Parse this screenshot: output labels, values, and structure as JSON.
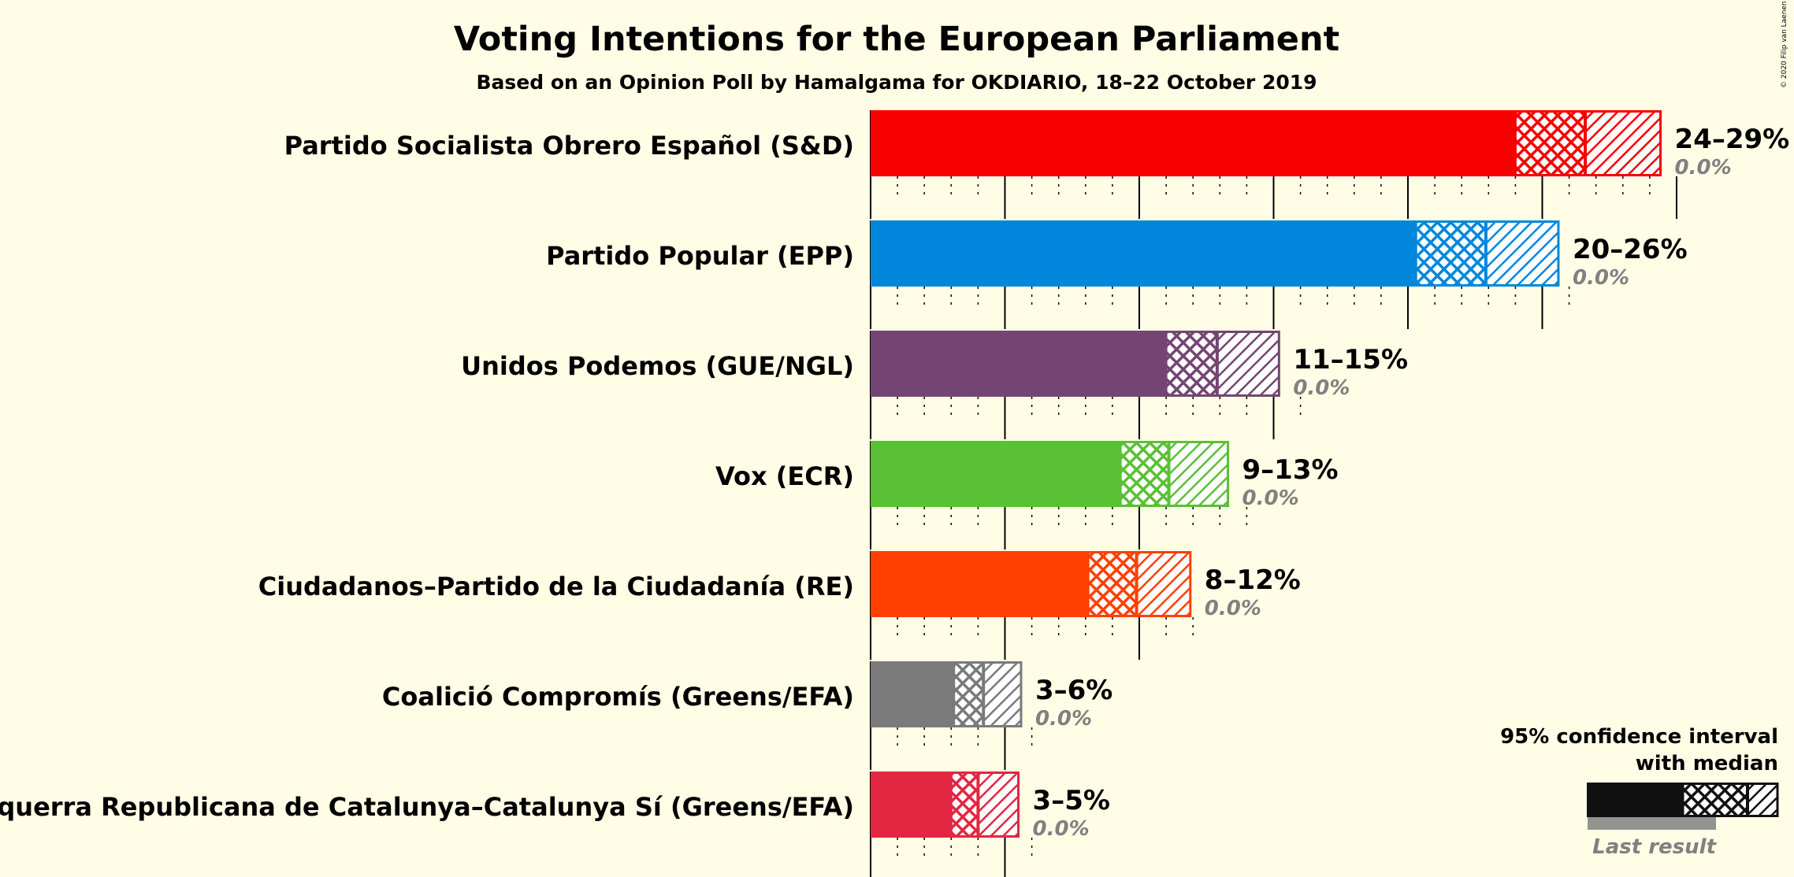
{
  "copyright": "© 2020 Filip van Laenen",
  "colors": {
    "background": "#FFFDE6",
    "last_result": "#808080"
  },
  "chart_data": {
    "type": "bar",
    "orientation": "horizontal",
    "title": "Voting Intentions for the European Parliament",
    "subtitle": "Based on an Opinion Poll by Hamalgama for OKDIARIO, 18–22 October 2019",
    "xlim": [
      0,
      30
    ],
    "grid": true,
    "series": [
      {
        "name": "Partido Socialista Obrero Español (S&D)",
        "color": "#F70000",
        "ci_low": 24,
        "median": 26.6,
        "ci_high": 29.4,
        "range_label": "24–29%",
        "last_result": "0.0%"
      },
      {
        "name": "Partido Popular (EPP)",
        "color": "#0087DC",
        "ci_low": 20.3,
        "median": 22.9,
        "ci_high": 25.6,
        "range_label": "20–26%",
        "last_result": "0.0%"
      },
      {
        "name": "Unidos Podemos (GUE/NGL)",
        "color": "#744573",
        "ci_low": 11,
        "median": 12.9,
        "ci_high": 15.2,
        "range_label": "11–15%",
        "last_result": "0.0%"
      },
      {
        "name": "Vox (ECR)",
        "color": "#5AC035",
        "ci_low": 9.3,
        "median": 11.1,
        "ci_high": 13.3,
        "range_label": "9–13%",
        "last_result": "0.0%"
      },
      {
        "name": "Ciudadanos–Partido de la Ciudadanía (RE)",
        "color": "#FF4000",
        "ci_low": 8.1,
        "median": 9.9,
        "ci_high": 11.9,
        "range_label": "8–12%",
        "last_result": "0.0%"
      },
      {
        "name": "Coalició Compromís (Greens/EFA)",
        "color": "#7A7A7A",
        "ci_low": 3.1,
        "median": 4.2,
        "ci_high": 5.6,
        "range_label": "3–6%",
        "last_result": "0.0%"
      },
      {
        "name": "Esquerra Republicana de Catalunya–Catalunya Sí (Greens/EFA)",
        "color": "#E32642",
        "ci_low": 3,
        "median": 4,
        "ci_high": 5.5,
        "range_label": "3–5%",
        "last_result": "0.0%"
      }
    ],
    "legend": {
      "line1": "95% confidence interval",
      "line2": "with median",
      "last_result": "Last result",
      "placement": "bottom-right"
    }
  }
}
